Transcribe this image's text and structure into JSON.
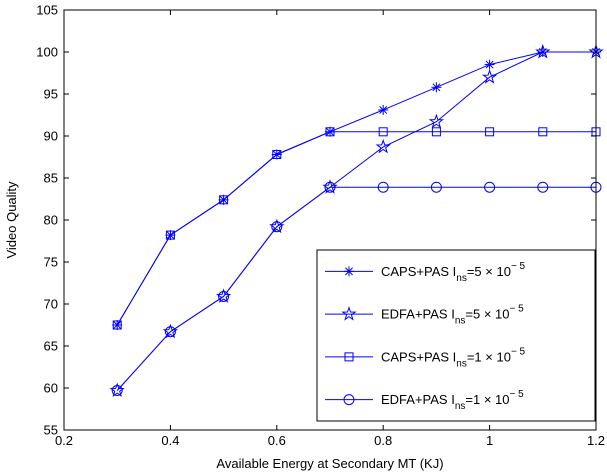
{
  "chart_data": {
    "type": "line",
    "xlabel": "Available Energy at Secondary MT (KJ)",
    "ylabel": "Video Quality",
    "xlim": [
      0.2,
      1.2
    ],
    "ylim": [
      55,
      105
    ],
    "xticks": [
      "0.2",
      "0.4",
      "0.6",
      "0.8",
      "1",
      "1.2"
    ],
    "yticks": [
      "55",
      "60",
      "65",
      "70",
      "75",
      "80",
      "85",
      "90",
      "95",
      "100",
      "105"
    ],
    "grid": false,
    "legend_position": "lower-right",
    "line_color": "#0000ff",
    "x": [
      0.3,
      0.4,
      0.5,
      0.6,
      0.7,
      0.8,
      0.9,
      1.0,
      1.1,
      1.2
    ],
    "series": [
      {
        "label_prefix": "CAPS+PAS I",
        "label_sub": "ns",
        "label_mid": "=5 × 10",
        "label_sup": "− 5",
        "marker": "asterisk",
        "values": [
          67.5,
          78.2,
          82.4,
          87.8,
          90.5,
          93.1,
          95.8,
          98.5,
          100.0,
          100.0
        ]
      },
      {
        "label_prefix": "EDFA+PAS I",
        "label_sub": "ns",
        "label_mid": "=5 × 10",
        "label_sup": "− 5",
        "marker": "star",
        "values": [
          59.7,
          66.7,
          70.9,
          79.2,
          83.9,
          88.7,
          91.7,
          97.0,
          100.0,
          100.0
        ]
      },
      {
        "label_prefix": "CAPS+PAS I",
        "label_sub": "ns",
        "label_mid": "=1 × 10",
        "label_sup": "− 5",
        "marker": "square",
        "values": [
          67.5,
          78.2,
          82.4,
          87.8,
          90.5,
          90.5,
          90.5,
          90.5,
          90.5,
          90.5
        ]
      },
      {
        "label_prefix": "EDFA+PAS I",
        "label_sub": "ns",
        "label_mid": "=1 × 10",
        "label_sup": "− 5",
        "marker": "circle",
        "values": [
          59.7,
          66.7,
          70.9,
          79.2,
          83.9,
          83.9,
          83.9,
          83.9,
          83.9,
          83.9
        ]
      }
    ]
  }
}
